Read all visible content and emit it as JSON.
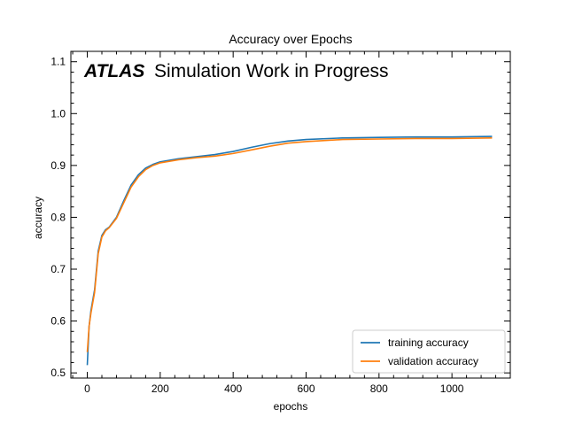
{
  "chart_data": {
    "type": "line",
    "title": "Accuracy over Epochs",
    "xlabel": "epochs",
    "ylabel": "accuracy",
    "xlim": [
      -45,
      1160
    ],
    "ylim": [
      0.49,
      1.12
    ],
    "xticks": [
      0,
      200,
      400,
      600,
      800,
      1000
    ],
    "yticks": [
      0.5,
      0.6,
      0.7,
      0.8,
      0.9,
      1.0,
      1.1
    ],
    "xtick_labels": [
      "0",
      "200",
      "400",
      "600",
      "800",
      "1000"
    ],
    "ytick_labels": [
      "0.5",
      "0.6",
      "0.7",
      "0.8",
      "0.9",
      "1.0",
      "1.1"
    ],
    "grid": false,
    "legend_position": "lower-right",
    "annotation": {
      "experiment": "ATLAS",
      "status": "Simulation Work in Progress"
    },
    "series": [
      {
        "name": "training accuracy",
        "color": "#1f77b4",
        "x": [
          0,
          5,
          10,
          20,
          30,
          40,
          50,
          60,
          80,
          100,
          120,
          140,
          160,
          180,
          200,
          250,
          300,
          350,
          400,
          450,
          500,
          550,
          600,
          700,
          800,
          900,
          1000,
          1110
        ],
        "y": [
          0.515,
          0.59,
          0.62,
          0.66,
          0.735,
          0.765,
          0.776,
          0.781,
          0.8,
          0.832,
          0.862,
          0.882,
          0.895,
          0.902,
          0.907,
          0.913,
          0.917,
          0.921,
          0.927,
          0.935,
          0.942,
          0.947,
          0.95,
          0.953,
          0.954,
          0.955,
          0.955,
          0.956
        ]
      },
      {
        "name": "validation accuracy",
        "color": "#ff7f0e",
        "x": [
          0,
          5,
          10,
          20,
          30,
          40,
          50,
          60,
          80,
          100,
          120,
          140,
          160,
          180,
          200,
          250,
          300,
          350,
          400,
          450,
          500,
          550,
          600,
          700,
          800,
          900,
          1000,
          1110
        ],
        "y": [
          0.54,
          0.59,
          0.615,
          0.655,
          0.73,
          0.762,
          0.774,
          0.78,
          0.798,
          0.828,
          0.858,
          0.878,
          0.892,
          0.9,
          0.905,
          0.911,
          0.915,
          0.918,
          0.923,
          0.93,
          0.937,
          0.943,
          0.946,
          0.95,
          0.951,
          0.952,
          0.952,
          0.953
        ]
      }
    ]
  }
}
